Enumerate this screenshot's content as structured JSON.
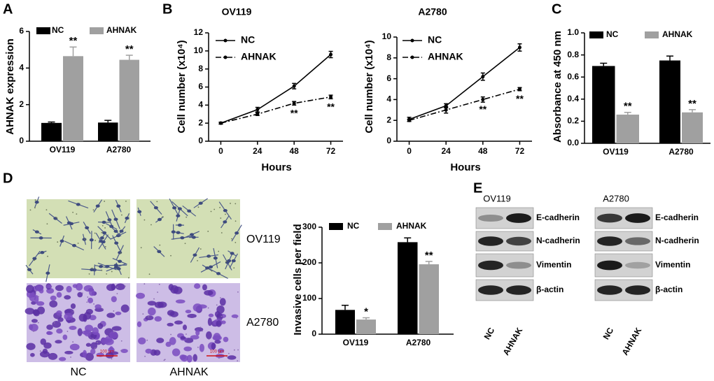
{
  "panel_labels": [
    "A",
    "B",
    "C",
    "D",
    "E"
  ],
  "chart_data": [
    {
      "type": "bar",
      "ylabel": "AHNAK expression",
      "categories": [
        "OV119",
        "A2780"
      ],
      "series": [
        {
          "name": "NC",
          "color": "#000000",
          "values": [
            1.0,
            1.02
          ],
          "errors": [
            0.05,
            0.12
          ]
        },
        {
          "name": "AHNAK",
          "color": "#a0a0a0",
          "values": [
            4.65,
            4.45
          ],
          "errors": [
            0.5,
            0.25
          ],
          "significance": [
            "**",
            "**"
          ]
        }
      ],
      "ylim": [
        0,
        6
      ],
      "yticks": [
        0,
        2,
        4,
        6
      ]
    },
    {
      "type": "line",
      "title": "OV119",
      "xlabel": "Hours",
      "ylabel": "Cell number (x10⁴)",
      "x": [
        0,
        24,
        48,
        72
      ],
      "series": [
        {
          "name": "NC",
          "color": "#000000",
          "linestyle": "solid",
          "values": [
            2.0,
            3.5,
            6.1,
            9.6
          ],
          "errors": [
            0.1,
            0.25,
            0.3,
            0.35
          ]
        },
        {
          "name": "AHNAK",
          "color": "#000000",
          "linestyle": "dashdot",
          "values": [
            2.0,
            3.0,
            4.2,
            4.9
          ],
          "errors": [
            0.1,
            0.15,
            0.2,
            0.2
          ],
          "significance": [
            null,
            null,
            "**",
            "**"
          ]
        }
      ],
      "xlim": [
        -8,
        80
      ],
      "xticks": [
        0,
        24,
        48,
        72
      ],
      "ylim": [
        0,
        12
      ],
      "yticks": [
        0,
        2,
        4,
        6,
        8,
        10,
        12
      ]
    },
    {
      "type": "line",
      "title": "A2780",
      "xlabel": "Hours",
      "ylabel": "Cell number (x10⁴)",
      "x": [
        0,
        24,
        48,
        72
      ],
      "series": [
        {
          "name": "NC",
          "color": "#000000",
          "linestyle": "solid",
          "values": [
            2.1,
            3.4,
            6.2,
            9.0
          ],
          "errors": [
            0.2,
            0.2,
            0.35,
            0.35
          ]
        },
        {
          "name": "AHNAK",
          "color": "#000000",
          "linestyle": "dashdot",
          "values": [
            2.0,
            3.0,
            4.0,
            5.0
          ],
          "errors": [
            0.1,
            0.3,
            0.25,
            0.15
          ],
          "significance": [
            null,
            null,
            "**",
            "**"
          ]
        }
      ],
      "xlim": [
        -8,
        80
      ],
      "xticks": [
        0,
        24,
        48,
        72
      ],
      "ylim": [
        0,
        10
      ],
      "yticks": [
        0,
        2,
        4,
        6,
        8,
        10
      ]
    },
    {
      "type": "bar",
      "ylabel": "Absorbance at 450 nm",
      "categories": [
        "OV119",
        "A2780"
      ],
      "series": [
        {
          "name": "NC",
          "color": "#000000",
          "values": [
            0.7,
            0.75
          ],
          "errors": [
            0.025,
            0.04
          ]
        },
        {
          "name": "AHNAK",
          "color": "#a0a0a0",
          "values": [
            0.26,
            0.28
          ],
          "errors": [
            0.02,
            0.025
          ],
          "significance": [
            "**",
            "**"
          ]
        }
      ],
      "ylim": [
        0,
        1.0
      ],
      "yticks": [
        {
          "value": 0,
          "label": "0.0"
        },
        0.2,
        0.4,
        0.6,
        0.8,
        {
          "value": 1.0,
          "label": "1.0"
        }
      ]
    },
    {
      "type": "bar",
      "ylabel": "Invasive cells per field",
      "categories": [
        "OV119",
        "A2780"
      ],
      "series": [
        {
          "name": "NC",
          "color": "#000000",
          "values": [
            68,
            258
          ],
          "errors": [
            13,
            12
          ]
        },
        {
          "name": "AHNAK",
          "color": "#a0a0a0",
          "values": [
            41,
            196
          ],
          "errors": [
            5,
            8
          ],
          "significance": [
            "*",
            "**"
          ]
        }
      ],
      "ylim": [
        0,
        300
      ],
      "yticks": [
        0,
        100,
        200,
        300
      ]
    }
  ],
  "micrographs": {
    "row_labels": [
      "OV119",
      "A2780"
    ],
    "column_labels": [
      "NC",
      "AHNAK"
    ],
    "scale_bar": "100 μm"
  },
  "western_blot": {
    "blots": [
      {
        "title": "OV119",
        "bands": [
          "E-cadherin",
          "N-cadherin",
          "Vimentin",
          "β-actin"
        ],
        "lanes": [
          "NC",
          "AHNAK"
        ]
      },
      {
        "title": "A2780",
        "bands": [
          "E-cadherin",
          "N-cadherin",
          "Vimentin",
          "β-actin"
        ],
        "lanes": [
          "NC",
          "AHNAK"
        ]
      }
    ]
  }
}
